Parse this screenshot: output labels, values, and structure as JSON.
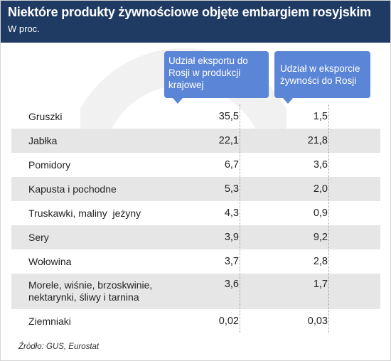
{
  "chart_data": {
    "type": "table",
    "title": "Niektóre produkty żywnościowe objęte embargiem rosyjskim",
    "subtitle": "W proc.",
    "columns": [
      "Udział eksportu do Rosji w produkcji krajowej",
      "Udział w eksporcie żywności do Rosji"
    ],
    "rows": [
      {
        "name": "Gruszki",
        "v1": "35,5",
        "v2": "1,5"
      },
      {
        "name": "Jabłka",
        "v1": "22,1",
        "v2": "21,8"
      },
      {
        "name": "Pomidory",
        "v1": "6,7",
        "v2": "3,6"
      },
      {
        "name": "Kapusta i pochodne",
        "v1": "5,3",
        "v2": "2,0"
      },
      {
        "name": "Truskawki, maliny  jeżyny",
        "v1": "4,3",
        "v2": "0,9"
      },
      {
        "name": "Sery",
        "v1": "3,9",
        "v2": "9,2"
      },
      {
        "name": "Wołowina",
        "v1": "3,7",
        "v2": "2,8"
      },
      {
        "name": "Morele, wiśnie, brzoskwinie, nektarynki, śliwy i tarnina",
        "v1": "3,6",
        "v2": "1,7"
      },
      {
        "name": "Ziemniaki",
        "v1": "0,02",
        "v2": "0,03"
      }
    ],
    "source": "Źródło: GUS, Eurostat"
  },
  "colors": {
    "header_bg": "#1f3b63",
    "column_header_bg": "#5b85d6",
    "row_shade": "#e6e6e6"
  }
}
